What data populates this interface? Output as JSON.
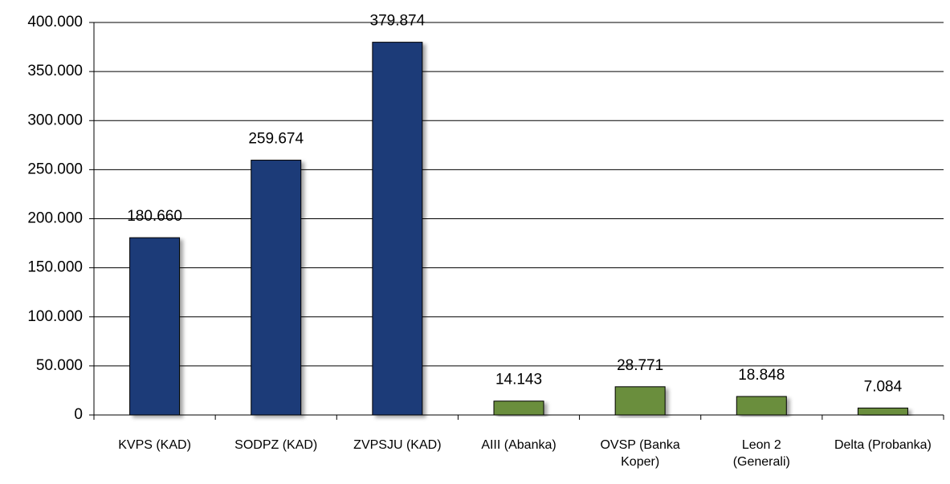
{
  "chart_data": {
    "type": "bar",
    "categories": [
      "KVPS (KAD)",
      "SODPZ (KAD)",
      "ZVPSJU (KAD)",
      "AIII (Abanka)",
      "OVSP (Banka Koper)",
      "Leon 2 (Generali)",
      "Delta (Probanka)"
    ],
    "values": [
      180660,
      259674,
      379874,
      14143,
      28771,
      18848,
      7084
    ],
    "value_labels": [
      "180.660",
      "259.674",
      "379.874",
      "14.143",
      "28.771",
      "18.848",
      "7.084"
    ],
    "colors": [
      "#1f3a78",
      "#1f3a78",
      "#1f3a78",
      "#6a8e3e",
      "#6a8e3e",
      "#6a8e3e",
      "#6a8e3e"
    ],
    "ylim": [
      0,
      400000
    ],
    "yticks": [
      {
        "value": 0,
        "label": "0"
      },
      {
        "value": 50000,
        "label": "50.000"
      },
      {
        "value": 100000,
        "label": "100.000"
      },
      {
        "value": 150000,
        "label": "150.000"
      },
      {
        "value": 200000,
        "label": "200.000"
      },
      {
        "value": 250000,
        "label": "250.000"
      },
      {
        "value": 300000,
        "label": "300.000"
      },
      {
        "value": 350000,
        "label": "350.000"
      },
      {
        "value": 400000,
        "label": "400.000"
      }
    ],
    "grid": true
  }
}
